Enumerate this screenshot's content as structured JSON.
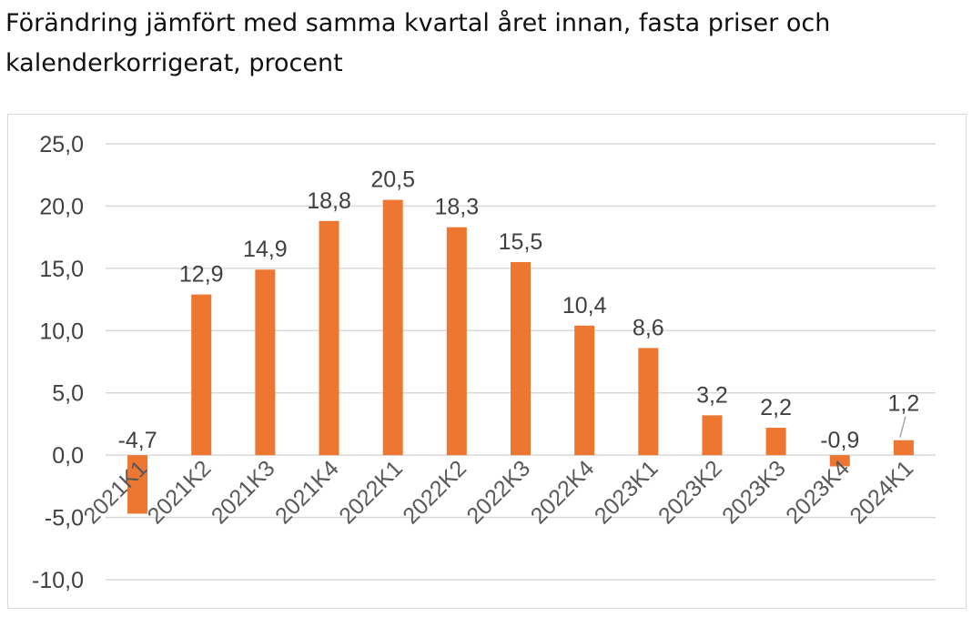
{
  "title": "Förändring jämfört med samma kvartal året innan, fasta priser och kalenderkorrigerat, procent",
  "chart_data": {
    "type": "bar",
    "categories": [
      "2021K1",
      "2021K2",
      "2021K3",
      "2021K4",
      "2022K1",
      "2022K2",
      "2022K3",
      "2022K4",
      "2023K1",
      "2023K2",
      "2023K3",
      "2023K4",
      "2024K1"
    ],
    "values": [
      -4.7,
      12.9,
      14.9,
      18.8,
      20.5,
      18.3,
      15.5,
      10.4,
      8.6,
      3.2,
      2.2,
      -0.9,
      1.2
    ],
    "value_labels": [
      "-4,7",
      "12,9",
      "14,9",
      "18,8",
      "20,5",
      "18,3",
      "15,5",
      "10,4",
      "8,6",
      "3,2",
      "2,2",
      "-0,9",
      "1,2"
    ],
    "title": "Förändring jämfört med samma kvartal året innan, fasta priser och kalenderkorrigerat, procent",
    "xlabel": "",
    "ylabel": "",
    "ylim": [
      -10,
      25
    ],
    "yticks": [
      25,
      20,
      15,
      10,
      5,
      0,
      -5,
      -10
    ],
    "ytick_labels": [
      "25,0",
      "20,0",
      "15,0",
      "10,0",
      "5,0",
      "0,0",
      "-5,0",
      "-10,0"
    ],
    "grid": true,
    "legend": "none",
    "bar_color": "#ed7731",
    "grid_color": "#d9d9d9"
  }
}
